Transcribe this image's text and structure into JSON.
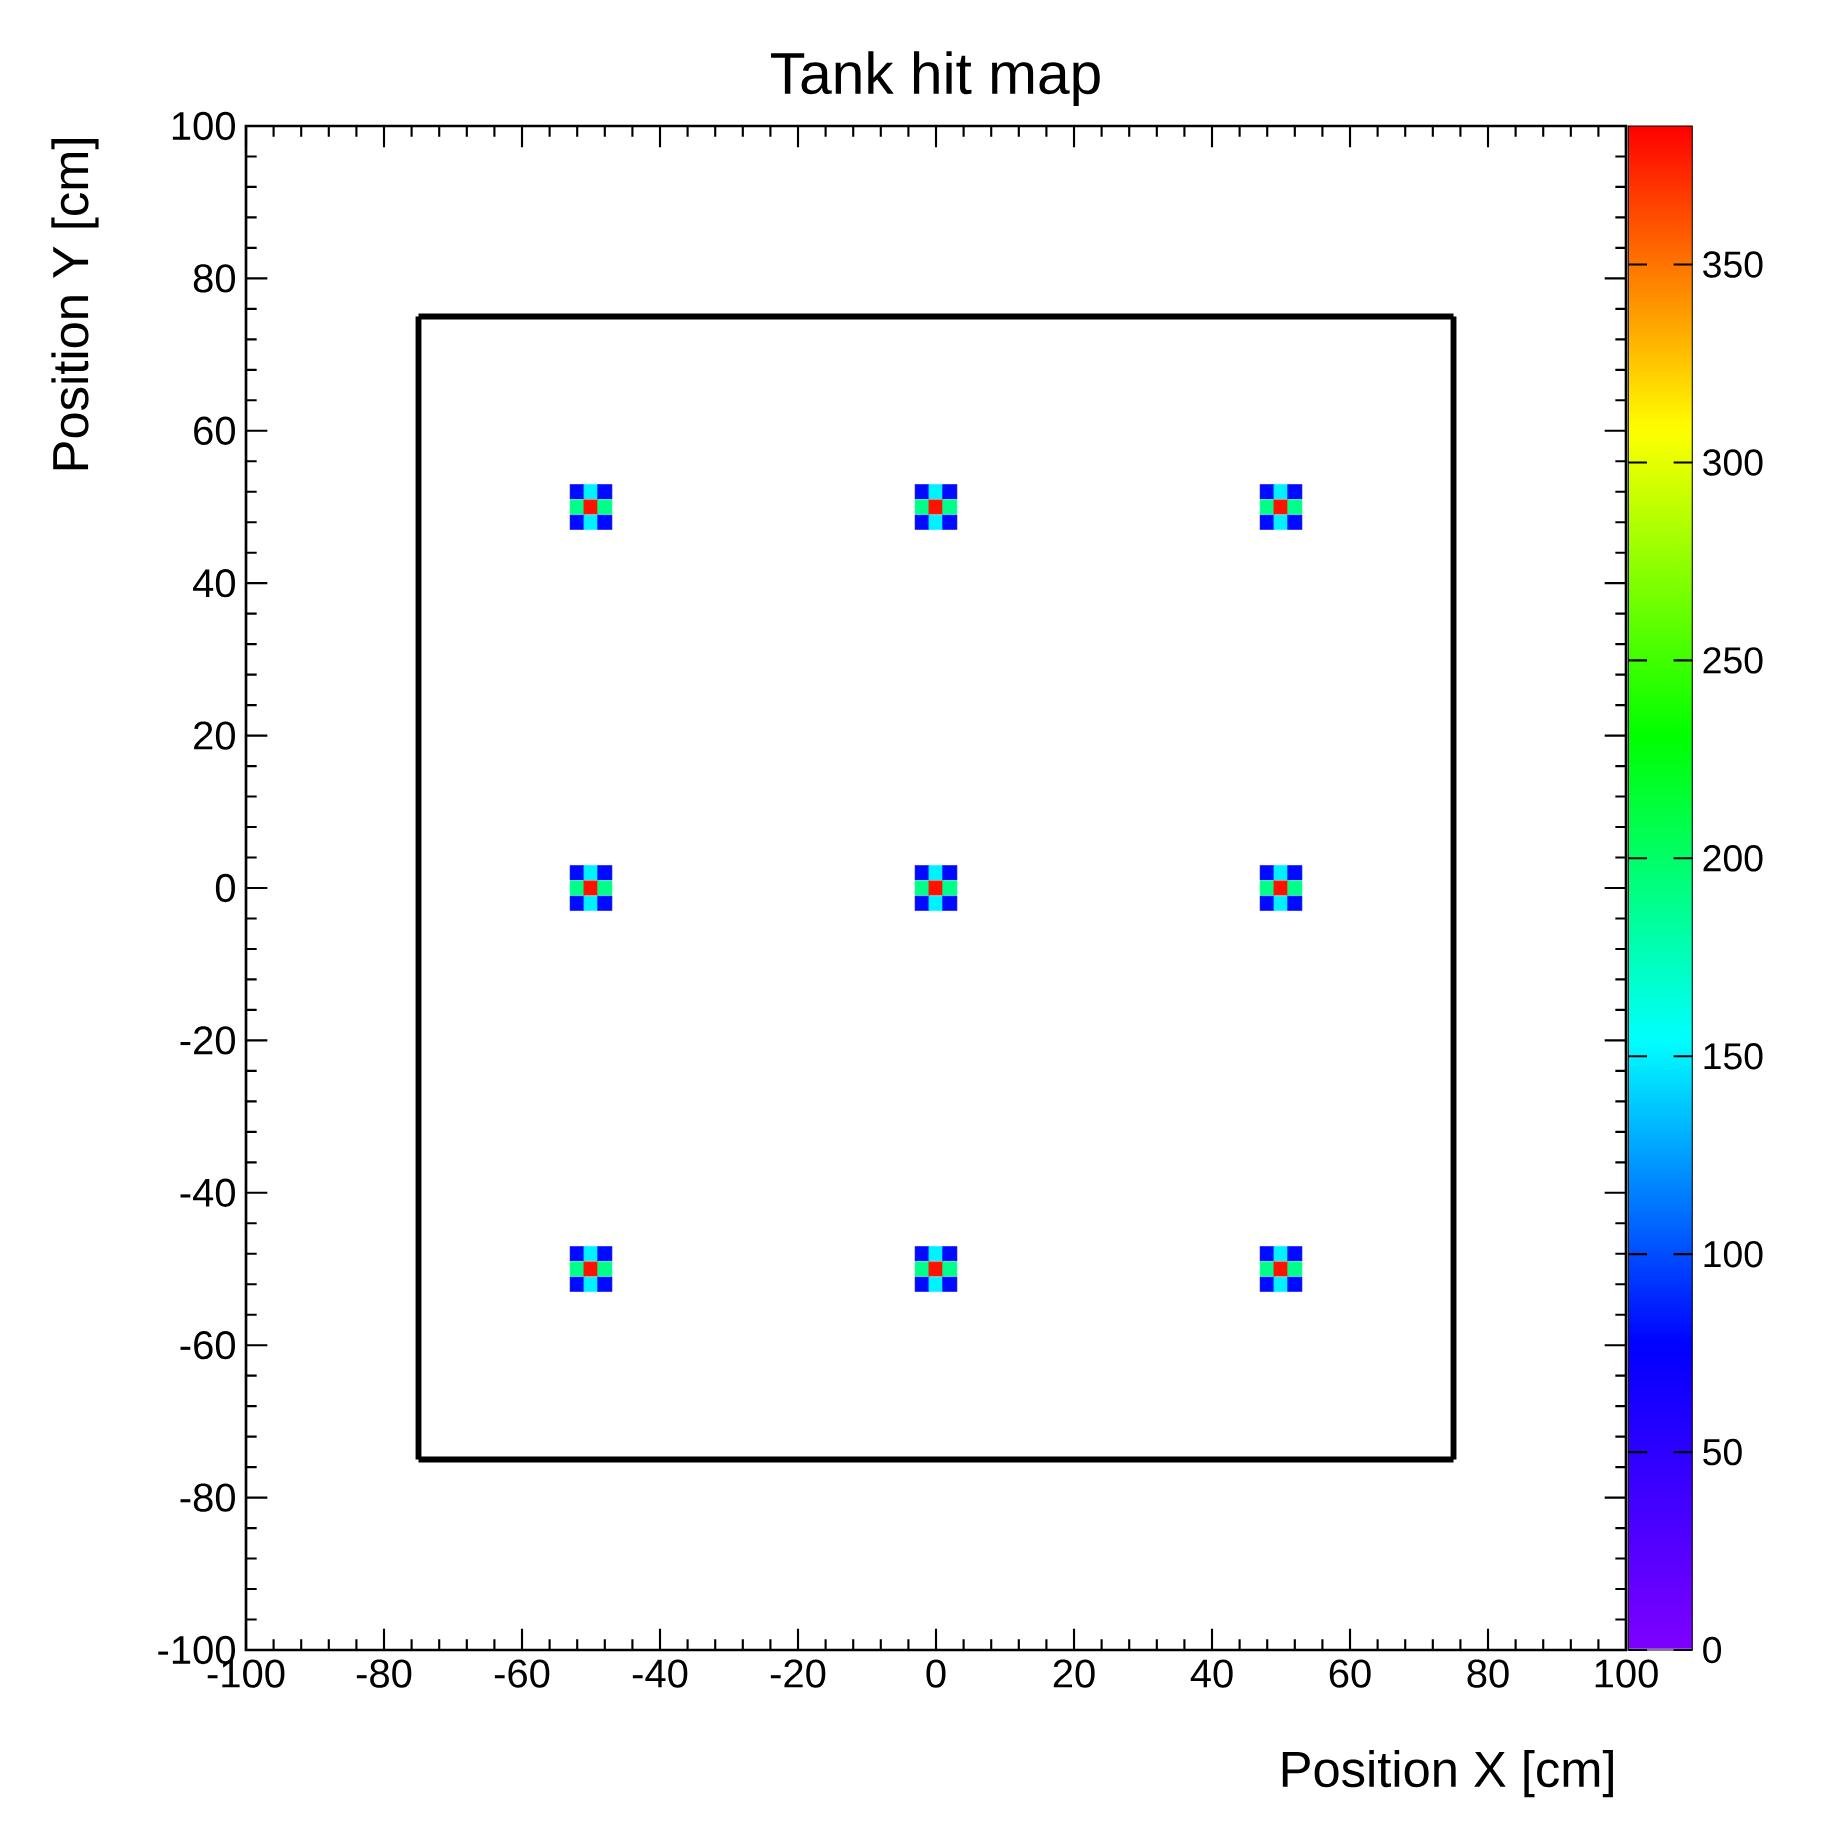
{
  "chart_data": {
    "type": "scatter",
    "title": "Tank hit map",
    "xlabel": "Position X [cm]",
    "ylabel": "Position Y [cm]",
    "xlim": [
      -100,
      100
    ],
    "ylim": [
      -100,
      100
    ],
    "xticks": [
      -100,
      -80,
      -60,
      -40,
      -20,
      0,
      20,
      40,
      60,
      80,
      100
    ],
    "yticks": [
      -100,
      -80,
      -60,
      -40,
      -20,
      0,
      20,
      40,
      60,
      80,
      100
    ],
    "clim": [
      0,
      385
    ],
    "cticks": [
      0,
      50,
      100,
      150,
      200,
      250,
      300,
      350
    ],
    "marker": "square",
    "series": [
      {
        "colors": [
          "#000aff",
          "#00f2ff",
          "#000aff",
          "#00ff88",
          "#ff1100",
          "#00ff88",
          "#000aff",
          "#00f2ff",
          "#000aff",
          "#000aff",
          "#00f2ff",
          "#000aff",
          "#00ff88",
          "#ff1100",
          "#00ff88",
          "#000aff",
          "#00f2ff",
          "#000aff",
          "#000aff",
          "#00f2ff",
          "#000aff",
          "#00ff88",
          "#ff1100",
          "#00ff88",
          "#000aff",
          "#00f2ff",
          "#000aff",
          "#000aff",
          "#00f2ff",
          "#000aff",
          "#00ff88",
          "#ff1100",
          "#00ff88",
          "#000aff",
          "#00f2ff",
          "#000aff",
          "#000aff",
          "#00f2ff",
          "#000aff",
          "#00ff88",
          "#ff1100",
          "#00ff88",
          "#000aff",
          "#00f2ff",
          "#000aff",
          "#000aff",
          "#00f2ff",
          "#000aff",
          "#00ff88",
          "#ff1100",
          "#00ff88",
          "#000aff",
          "#00f2ff",
          "#000aff",
          "#000aff",
          "#00f2ff",
          "#000aff",
          "#00ff88",
          "#ff1100",
          "#00ff88",
          "#000aff",
          "#00f2ff",
          "#000aff",
          "#000aff",
          "#00f2ff",
          "#000aff",
          "#00ff88",
          "#ff1100",
          "#00ff88",
          "#000aff",
          "#00f2ff",
          "#000aff",
          "#000aff",
          "#00f2ff",
          "#000aff",
          "#00ff88",
          "#ff1100",
          "#00ff88",
          "#000aff",
          "#00f2ff",
          "#000aff"
        ],
        "x": [
          -52,
          -50,
          -48,
          -52,
          -50,
          -48,
          -52,
          -50,
          -48,
          -2,
          0,
          2,
          -2,
          0,
          2,
          -2,
          0,
          2,
          48,
          50,
          52,
          48,
          50,
          52,
          48,
          50,
          52,
          -52,
          -50,
          -48,
          -52,
          -50,
          -48,
          -52,
          -50,
          -48,
          -2,
          0,
          2,
          -2,
          0,
          2,
          -2,
          0,
          2,
          48,
          50,
          52,
          48,
          50,
          52,
          48,
          50,
          52,
          -52,
          -50,
          -48,
          -52,
          -50,
          -48,
          -52,
          -50,
          -48,
          -2,
          0,
          2,
          -2,
          0,
          2,
          -2,
          0,
          2,
          48,
          50,
          52,
          48,
          50,
          52,
          48,
          50,
          52
        ],
        "values": [
          52,
          52,
          52,
          50,
          50,
          50,
          48,
          48,
          48,
          52,
          52,
          52,
          50,
          50,
          50,
          48,
          48,
          48,
          52,
          52,
          52,
          50,
          50,
          50,
          48,
          48,
          48,
          2,
          2,
          2,
          0,
          0,
          0,
          -2,
          -2,
          -2,
          2,
          2,
          2,
          0,
          0,
          0,
          -2,
          -2,
          -2,
          2,
          2,
          2,
          0,
          0,
          0,
          -2,
          -2,
          -2,
          -48,
          -48,
          -48,
          -50,
          -50,
          -50,
          -52,
          -52,
          -52,
          -48,
          -48,
          -48,
          -50,
          -50,
          -50,
          -52,
          -52,
          -52,
          -48,
          -48,
          -48,
          -50,
          -50,
          -50,
          -52,
          -52,
          -52
        ],
        "cvalues": [
          80,
          150,
          80,
          190,
          380,
          190,
          80,
          150,
          80,
          80,
          150,
          80,
          190,
          380,
          190,
          80,
          150,
          80,
          80,
          150,
          80,
          190,
          380,
          190,
          80,
          150,
          80,
          80,
          150,
          80,
          190,
          380,
          190,
          80,
          150,
          80,
          80,
          150,
          80,
          190,
          380,
          190,
          80,
          150,
          80,
          80,
          150,
          80,
          190,
          380,
          190,
          80,
          150,
          80,
          80,
          150,
          80,
          190,
          380,
          190,
          80,
          150,
          80,
          80,
          150,
          80,
          190,
          380,
          190,
          80,
          150,
          80,
          80,
          150,
          80,
          190,
          380,
          190,
          80,
          150,
          80
        ]
      },
      {
        "type": "line",
        "marker": "none",
        "color": "#000000",
        "x": [
          -75,
          75
        ],
        "values": [
          -75,
          -75
        ]
      },
      {
        "type": "line",
        "marker": "none",
        "color": "#000000",
        "x": [
          -75,
          75
        ],
        "values": [
          75,
          75
        ]
      },
      {
        "type": "line",
        "marker": "none",
        "color": "#000000",
        "x": [
          -75,
          -75
        ],
        "values": [
          -75,
          75
        ]
      },
      {
        "type": "line",
        "marker": "none",
        "color": "#000000",
        "x": [
          75,
          75
        ],
        "values": [
          -75,
          75
        ]
      }
    ]
  }
}
